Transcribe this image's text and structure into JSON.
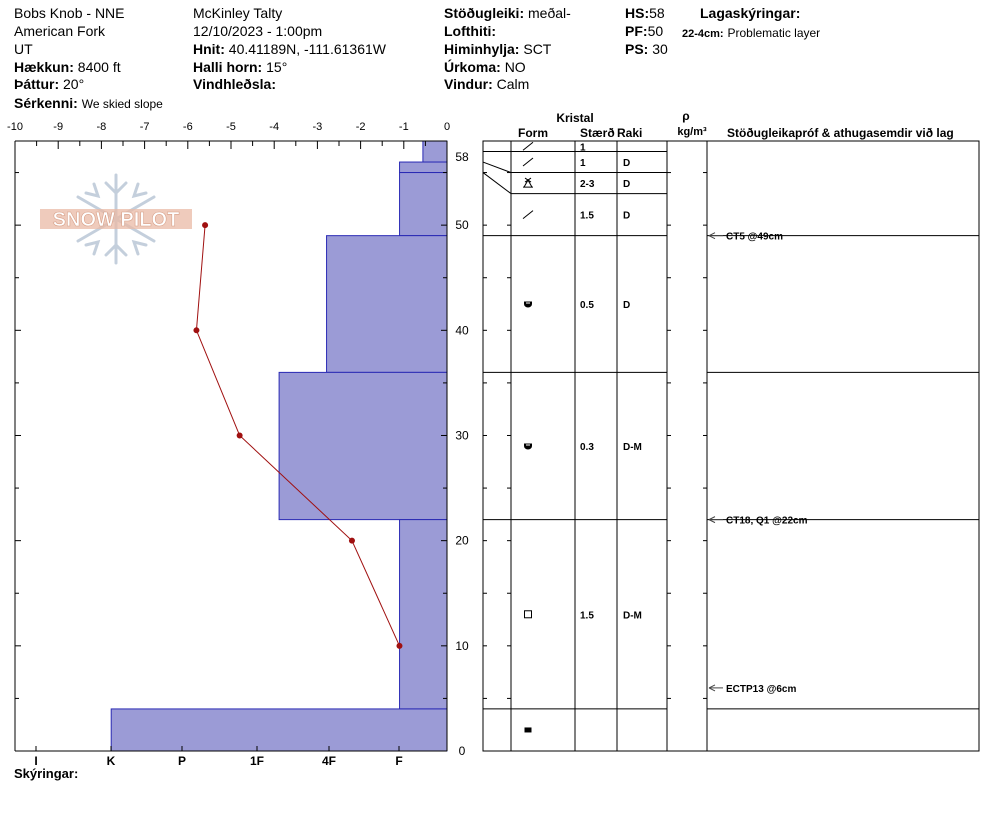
{
  "header": {
    "location": "Bobs Knob - NNE",
    "range": "American Fork",
    "state": "UT",
    "elevation_label": "Hækkun:",
    "elevation_value": "8400 ft",
    "aspect_label": "Þáttur:",
    "aspect_value": "20°",
    "specifics_label": "Sérkenni:",
    "specifics_value": "We skied slope",
    "observer": "McKinley Talty",
    "datetime": "12/10/2023 - 1:00pm",
    "coords_label": "Hnit:",
    "coords_value": "40.41189N, -111.61361W",
    "slope_label": "Halli horn:",
    "slope_value": "15°",
    "wind_loading_label": "Vindhleðsla:",
    "wind_loading_value": "",
    "stability_label": "Stöðugleiki:",
    "stability_value": "meðal-",
    "air_temp_label": "Lofthiti:",
    "air_temp_value": "",
    "sky_label": "Himinhylja:",
    "sky_value": "SCT",
    "precip_label": "Úrkoma:",
    "precip_value": "NO",
    "wind_label": "Vindur:",
    "wind_value": "Calm",
    "hs_label": "HS:",
    "hs_value": "58",
    "pf_label": "PF:",
    "pf_value": "50",
    "ps_label": "PS:",
    "ps_value": "30",
    "notes_title": "Lagaskýringar:",
    "notes_range": "22-4cm:",
    "notes_text": "Problematic layer",
    "footer_label": "Skýringar:"
  },
  "watermark": "SNOW PILOT",
  "chart_data": {
    "type": "snow-profile",
    "temperature_axis": {
      "min": -10,
      "max": 0,
      "ticks": [
        "-10",
        "-9",
        "-8",
        "-7",
        "-6",
        "-5",
        "-4",
        "-3",
        "-2",
        "-1",
        "0"
      ]
    },
    "height_axis": {
      "min": 0,
      "max": 58,
      "ticks": [
        0,
        10,
        20,
        30,
        40,
        50
      ],
      "top_label": "58"
    },
    "hardness_axis": {
      "labels": [
        "I",
        "K",
        "P",
        "1F",
        "4F",
        "F"
      ]
    },
    "temperature_profile": [
      {
        "depth": 50,
        "temp": -5.6
      },
      {
        "depth": 40,
        "temp": -5.8
      },
      {
        "depth": 30,
        "temp": -4.8
      },
      {
        "depth": 20,
        "temp": -2.2
      },
      {
        "depth": 10,
        "temp": -1.1
      }
    ],
    "hardness_layers": [
      {
        "bottom": 56,
        "top": 58,
        "hardness_index": 0.33
      },
      {
        "bottom": 55,
        "top": 56,
        "hardness_index": 0.65
      },
      {
        "bottom": 49,
        "top": 55,
        "hardness_index": 0.65
      },
      {
        "bottom": 36,
        "top": 49,
        "hardness_index": 1.65
      },
      {
        "bottom": 22,
        "top": 36,
        "hardness_index": 2.3
      },
      {
        "bottom": 4,
        "top": 22,
        "hardness_index": 0.65
      },
      {
        "bottom": 0,
        "top": 4,
        "hardness_index": 4.6
      }
    ],
    "table_headers": {
      "crystal": "Kristal",
      "form": "Form",
      "size": "Stærð",
      "moisture": "Raki",
      "density_symbol": "ρ",
      "density_unit": "kg/m³",
      "tests": "Stöðugleikapróf & athugasemdir við lag"
    },
    "table_rows": [
      {
        "bottom": 57,
        "top": 58,
        "form": "slash",
        "size": "1",
        "moisture": ""
      },
      {
        "bottom": 55,
        "top": 57,
        "form": "slash",
        "size": "1",
        "moisture": "D"
      },
      {
        "bottom": 53,
        "top": 55,
        "form": "surface-hoar",
        "size": "2-3",
        "moisture": "D"
      },
      {
        "bottom": 49,
        "top": 53,
        "form": "slash",
        "size": "1.5",
        "moisture": "D"
      },
      {
        "bottom": 36,
        "top": 49,
        "form": "rounded-faceted",
        "size": "0.5",
        "moisture": "D"
      },
      {
        "bottom": 22,
        "top": 36,
        "form": "rounded-faceted",
        "size": "0.3",
        "moisture": "D-M"
      },
      {
        "bottom": 4,
        "top": 22,
        "form": "faceted",
        "size": "1.5",
        "moisture": "D-M"
      },
      {
        "bottom": 0,
        "top": 4,
        "form": "ice-layer",
        "size": "",
        "moisture": ""
      }
    ],
    "stability_tests": [
      {
        "depth": 49,
        "label": "CT5 @49cm"
      },
      {
        "depth": 22,
        "label": "CT18, Q1 @22cm"
      },
      {
        "depth": 6,
        "label": "ECTP13 @6cm"
      }
    ],
    "colors": {
      "hardness_fill": "#9b9bd6",
      "hardness_stroke": "#2a2ab4",
      "temp_line": "#a01010"
    }
  }
}
